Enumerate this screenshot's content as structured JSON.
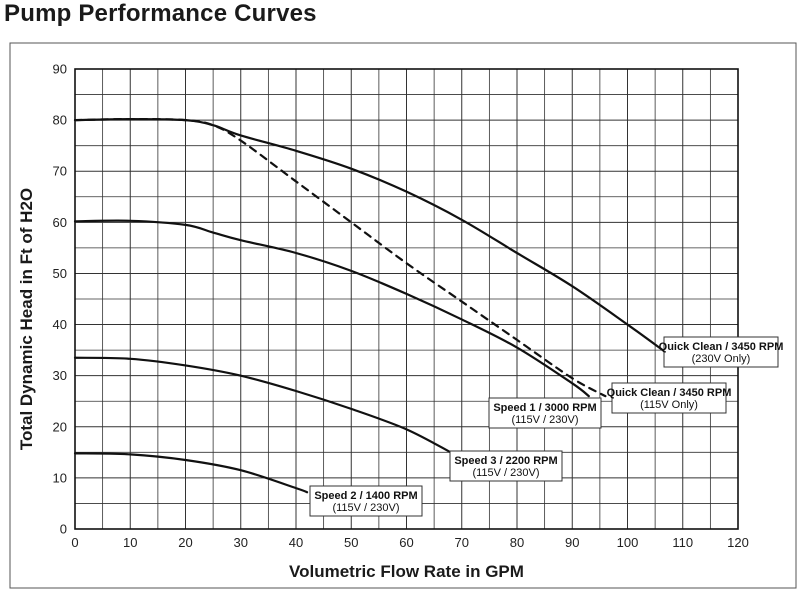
{
  "chart_data": {
    "type": "line",
    "title": "Pump Performance Curves",
    "xlabel": "Volumetric Flow Rate in GPM",
    "ylabel": "Total Dynamic Head in Ft of H2O",
    "xlim": [
      0,
      120
    ],
    "ylim": [
      0,
      90
    ],
    "xticks": [
      0,
      10,
      20,
      30,
      40,
      50,
      60,
      70,
      80,
      90,
      100,
      110,
      120
    ],
    "yticks": [
      0,
      10,
      20,
      30,
      40,
      50,
      60,
      70,
      80,
      90
    ],
    "grid": true,
    "series": [
      {
        "name": "Quick Clean / 3450 RPM",
        "note": "(230V Only)",
        "style": "solid",
        "x": [
          0,
          10,
          20,
          25,
          30,
          40,
          50,
          60,
          70,
          80,
          90,
          100,
          107
        ],
        "y": [
          80,
          80.2,
          80,
          79,
          77,
          74,
          70.5,
          66,
          60.5,
          54,
          47.5,
          40,
          34.5
        ]
      },
      {
        "name": "Quick Clean / 3450 RPM",
        "note": "(115V Only)",
        "style": "dashed",
        "x": [
          0,
          10,
          20,
          25,
          30,
          40,
          50,
          60,
          70,
          80,
          90,
          96
        ],
        "y": [
          80,
          80.2,
          80,
          79,
          76,
          68,
          60,
          52,
          44.5,
          37,
          29.5,
          26
        ]
      },
      {
        "name": "Speed 1 / 3000 RPM",
        "note": "(115V / 230V)",
        "style": "solid",
        "x": [
          0,
          10,
          20,
          25,
          30,
          40,
          50,
          60,
          70,
          80,
          90,
          93
        ],
        "y": [
          60.2,
          60.3,
          59.5,
          58,
          56.5,
          54,
          50.5,
          46,
          41,
          35.5,
          28.5,
          26
        ]
      },
      {
        "name": "Speed 3 / 2200 RPM",
        "note": "(115V / 230V)",
        "style": "solid",
        "x": [
          0,
          10,
          20,
          30,
          40,
          50,
          60,
          68
        ],
        "y": [
          33.5,
          33.3,
          32,
          30,
          27,
          23.5,
          19.5,
          15
        ]
      },
      {
        "name": "Speed 2 / 1400 RPM",
        "note": "(115V / 230V)",
        "style": "solid",
        "x": [
          0,
          10,
          20,
          30,
          40,
          42
        ],
        "y": [
          14.8,
          14.6,
          13.5,
          11.5,
          8,
          7.2
        ]
      }
    ]
  }
}
